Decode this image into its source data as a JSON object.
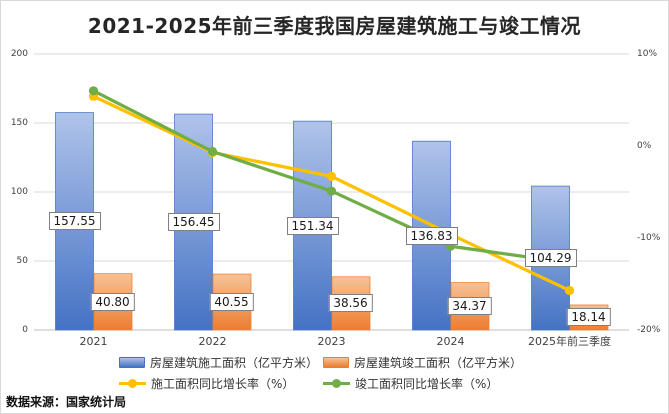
{
  "title": "2021-2025年前三季度我国房屋建筑施工与竣工情况",
  "source_note": "数据来源：国家统计局",
  "chart_data": {
    "type": "combo bar+line, dual axis",
    "categories": [
      "2021",
      "2022",
      "2023",
      "2024",
      "2025年前三季度"
    ],
    "bar_series": [
      {
        "key": "construction-area",
        "name": "房屋建筑施工面积（亿平方米）",
        "values": [
          157.55,
          156.45,
          151.34,
          136.83,
          104.29
        ],
        "labels": [
          "157.55",
          "156.45",
          "151.34",
          "136.83",
          "104.29"
        ],
        "color": "#4472c4",
        "color_light": "#b0c3ea"
      },
      {
        "key": "completion-area",
        "name": "房屋建筑竣工面积（亿平方米）",
        "values": [
          40.8,
          40.55,
          38.56,
          34.37,
          18.14
        ],
        "labels": [
          "40.80",
          "40.55",
          "38.56",
          "34.37",
          "18.14"
        ],
        "color": "#ed7d31",
        "color_light": "#f6c296"
      }
    ],
    "line_series": [
      {
        "key": "construction-growth",
        "name": "施工面积同比增长率（%）",
        "values": [
          5.4,
          -0.7,
          -3.3,
          -9.6,
          -15.7
        ],
        "color": "#ffc000"
      },
      {
        "key": "completion-growth",
        "name": "竣工面积同比增长率（%）",
        "values": [
          6.0,
          -0.6,
          -4.9,
          -10.9,
          -12.7
        ],
        "color": "#70ad47"
      }
    ],
    "left_axis": {
      "min": 0,
      "max": 200,
      "ticks": [
        {
          "label": "200",
          "v": 200
        },
        {
          "label": "150",
          "v": 150
        },
        {
          "label": "100",
          "v": 100
        },
        {
          "label": "50",
          "v": 50
        },
        {
          "label": "0",
          "v": 0
        }
      ]
    },
    "right_axis": {
      "min": -20,
      "max": 10,
      "ticks": [
        {
          "label": "10%",
          "v": 10
        },
        {
          "label": "0%",
          "v": 0
        },
        {
          "label": "-10%",
          "v": -10
        },
        {
          "label": "-20%",
          "v": -20
        }
      ]
    },
    "grid": true,
    "legend_position": "bottom"
  }
}
